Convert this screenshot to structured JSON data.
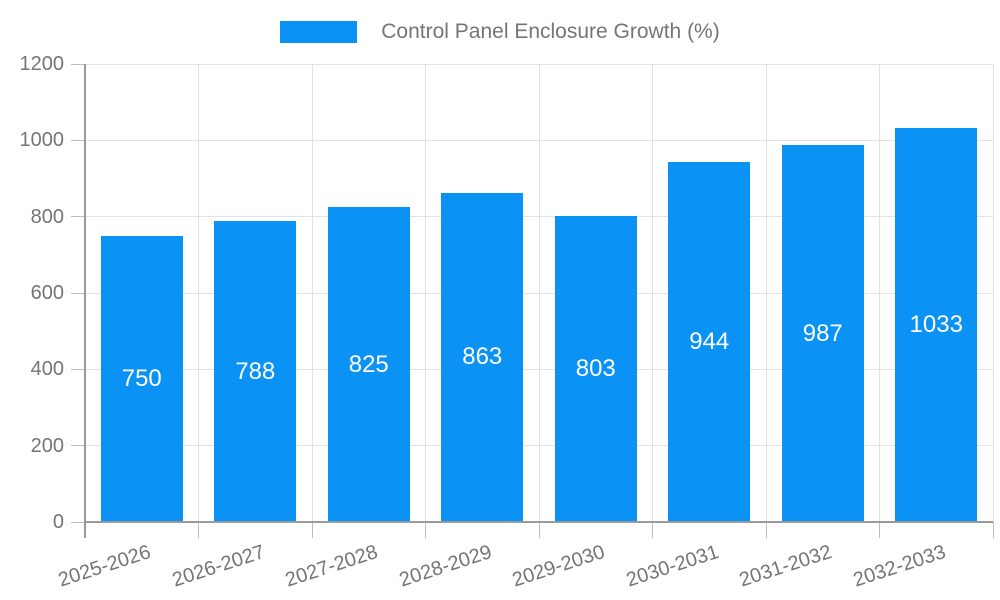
{
  "chart_data": {
    "type": "bar",
    "title": "Control Panel Enclosure Growth (%)",
    "categories": [
      "2025-2026",
      "2026-2027",
      "2027-2028",
      "2028-2029",
      "2029-2030",
      "2030-2031",
      "2031-2032",
      "2032-2033"
    ],
    "values": [
      750,
      788,
      825,
      863,
      803,
      944,
      987,
      1033
    ],
    "xlabel": "",
    "ylabel": "",
    "ylim": [
      0,
      1200
    ],
    "yticks": [
      0,
      200,
      400,
      600,
      800,
      1000,
      1200
    ],
    "legend_position": "top-center",
    "grid": "both",
    "value_label_position": "inside-center",
    "colors": {
      "bar": "#0b92f5",
      "axis_line": "#9a9a9a",
      "gridline": "#e2e2e2",
      "tick_mark": "#bdbdbd",
      "tick_text": "#757575",
      "value_label_text": "#ffffff"
    }
  }
}
